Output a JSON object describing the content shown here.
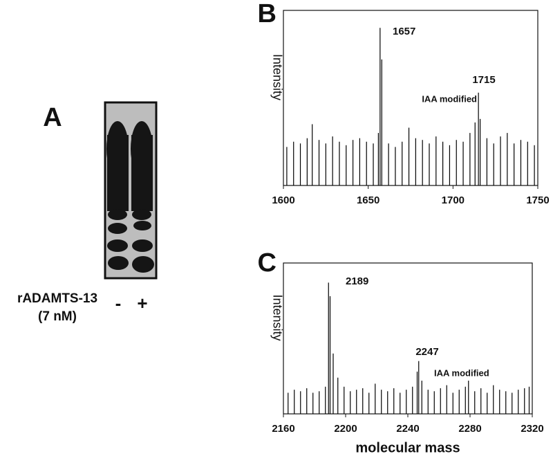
{
  "panel_a": {
    "label": "A",
    "condition_label": [
      "rADAMTS-13",
      "(7 nM)"
    ],
    "lanes": [
      "-",
      "+"
    ]
  },
  "chart_data": [
    {
      "type": "spectrum",
      "panel_label": "B",
      "y_label": "Intensity",
      "color": "#000000",
      "annotations": [
        "1657",
        "1715",
        "IAA modified"
      ],
      "x": [
        1602,
        1606,
        1610,
        1614,
        1617,
        1621,
        1625,
        1629,
        1633,
        1637,
        1641,
        1645,
        1649,
        1653,
        1656,
        1657,
        1658,
        1662,
        1666,
        1670,
        1674,
        1678,
        1682,
        1686,
        1690,
        1694,
        1698,
        1702,
        1706,
        1710,
        1713,
        1715,
        1716,
        1720,
        1724,
        1728,
        1732,
        1736,
        1740,
        1744,
        1748
      ],
      "values": [
        22,
        25,
        24,
        27,
        35,
        26,
        24,
        28,
        25,
        23,
        26,
        27,
        25,
        24,
        30,
        90,
        72,
        24,
        22,
        25,
        33,
        27,
        26,
        24,
        28,
        25,
        23,
        26,
        25,
        30,
        36,
        53,
        38,
        27,
        24,
        28,
        30,
        24,
        26,
        25,
        23
      ],
      "xlim": [
        1600,
        1750
      ],
      "xticks": [
        1600,
        1650,
        1700,
        1750
      ],
      "ylim": [
        0,
        100
      ]
    },
    {
      "type": "spectrum",
      "panel_label": "C",
      "y_label": "Intensity",
      "x_label": "molecular mass",
      "color": "#000000",
      "annotations": [
        "2189",
        "2247",
        "IAA modified"
      ],
      "x": [
        2163,
        2167,
        2171,
        2175,
        2179,
        2183,
        2187,
        2189,
        2190,
        2192,
        2195,
        2199,
        2203,
        2207,
        2211,
        2215,
        2219,
        2223,
        2227,
        2231,
        2235,
        2239,
        2243,
        2246,
        2247,
        2249,
        2253,
        2257,
        2261,
        2265,
        2269,
        2273,
        2277,
        2279,
        2283,
        2287,
        2291,
        2295,
        2299,
        2303,
        2307,
        2311,
        2315,
        2318
      ],
      "values": [
        14,
        16,
        15,
        17,
        14,
        15,
        18,
        87,
        78,
        40,
        24,
        18,
        15,
        16,
        17,
        14,
        20,
        16,
        15,
        17,
        14,
        16,
        18,
        28,
        35,
        22,
        16,
        15,
        17,
        19,
        14,
        16,
        18,
        22,
        15,
        17,
        14,
        19,
        16,
        15,
        14,
        16,
        17,
        18
      ],
      "xlim": [
        2160,
        2320
      ],
      "xticks": [
        2160,
        2200,
        2240,
        2280,
        2320
      ],
      "ylim": [
        0,
        100
      ]
    }
  ]
}
